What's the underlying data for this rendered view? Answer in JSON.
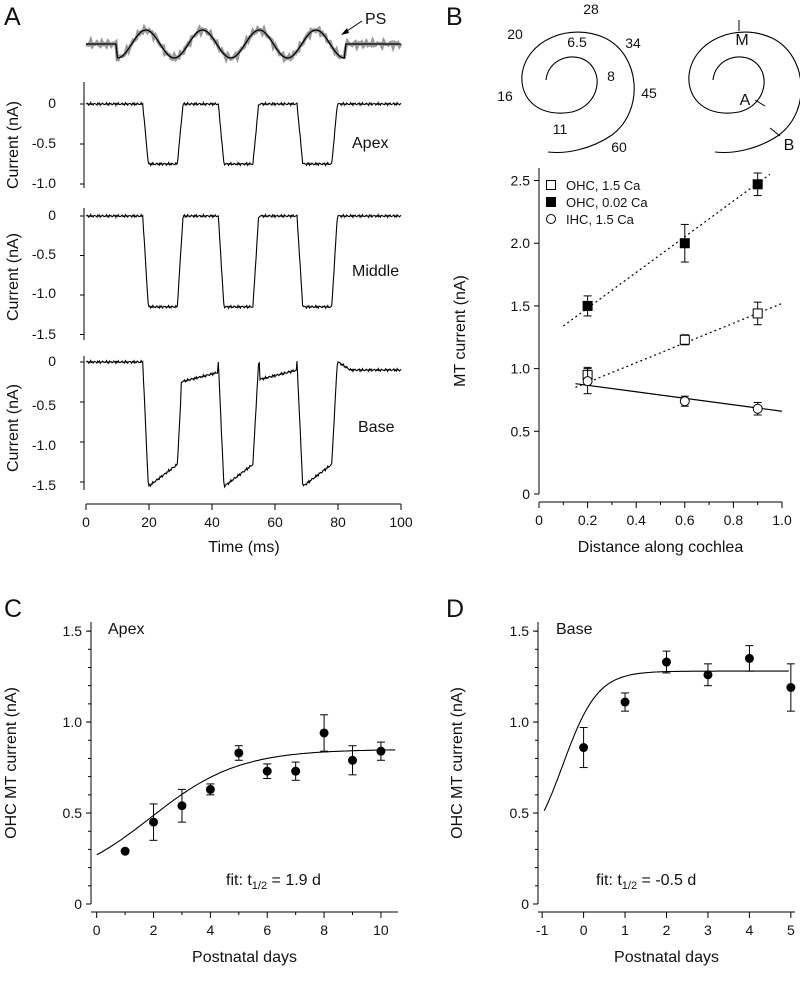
{
  "panels": {
    "A": {
      "letter": "A",
      "stimulus": {
        "label": "PS",
        "command_color": "#000000",
        "recorded_color": "#999999"
      },
      "traces": [
        {
          "name": "Apex",
          "ylabel": "Current (nA)",
          "yticks": [
            "0",
            "-0.5",
            "-1.0"
          ],
          "amplitude_nA": 0.75,
          "shape": "square"
        },
        {
          "name": "Middle",
          "ylabel": "Current (nA)",
          "yticks": [
            "0",
            "-0.5",
            "-1.0",
            "-1.5"
          ],
          "amplitude_nA": 1.15,
          "shape": "square"
        },
        {
          "name": "Base",
          "ylabel": "Current (nA)",
          "yticks": [
            "0",
            "-0.5",
            "-1.0",
            "-1.5"
          ],
          "amplitude_nA": 1.55,
          "shape": "adapting"
        }
      ],
      "xaxis": {
        "title": "Time (ms)",
        "ticks": [
          "0",
          "20",
          "40",
          "60",
          "80",
          "100"
        ]
      }
    },
    "B": {
      "letter": "B",
      "spiral_freq_labels": [
        "28",
        "20",
        "6.5",
        "34",
        "8",
        "45",
        "16",
        "11",
        "60"
      ],
      "spiral_pos_labels": [
        "M",
        "A",
        "B"
      ]
    },
    "C": {
      "letter": "C",
      "annotation": "Apex",
      "fit_label": "fit: t",
      "fit_sub": "1/2",
      "fit_value": " = 1.9 d"
    },
    "D": {
      "letter": "D",
      "annotation": "Base",
      "fit_label": "fit: t",
      "fit_sub": "1/2",
      "fit_value": " = -0.5 d"
    }
  },
  "chart_data": [
    {
      "id": "B-main",
      "type": "scatter",
      "xlabel": "Distance along cochlea",
      "ylabel": "MT current (nA)",
      "xlim": [
        0,
        1.0
      ],
      "ylim": [
        0,
        2.6
      ],
      "xticks": [
        "0",
        "0.2",
        "0.4",
        "0.6",
        "0.8",
        "1.0"
      ],
      "yticks": [
        "0",
        "0.5",
        "1.0",
        "1.5",
        "2.0",
        "2.5"
      ],
      "legend_position": "top-left",
      "series": [
        {
          "name": "OHC, 1.5 Ca",
          "marker": "open-square",
          "x": [
            0.2,
            0.6,
            0.9
          ],
          "y": [
            0.95,
            1.23,
            1.44
          ],
          "err": [
            0.06,
            0.04,
            0.09
          ],
          "fit": {
            "style": "dotted",
            "x": [
              0.15,
              1.0
            ],
            "y": [
              0.85,
              1.52
            ]
          }
        },
        {
          "name": "OHC, 0.02 Ca",
          "marker": "filled-square",
          "x": [
            0.2,
            0.6,
            0.9
          ],
          "y": [
            1.5,
            2.0,
            2.47
          ],
          "err": [
            0.08,
            0.15,
            0.09
          ],
          "fit": {
            "style": "dotted",
            "x": [
              0.1,
              0.95
            ],
            "y": [
              1.34,
              2.55
            ]
          }
        },
        {
          "name": "IHC, 1.5 Ca",
          "marker": "open-circle",
          "x": [
            0.2,
            0.6,
            0.9
          ],
          "y": [
            0.9,
            0.74,
            0.68
          ],
          "err": [
            0.1,
            0.04,
            0.05
          ],
          "fit": {
            "style": "solid",
            "x": [
              0.15,
              1.0
            ],
            "y": [
              0.88,
              0.66
            ]
          }
        }
      ]
    },
    {
      "id": "C",
      "type": "scatter",
      "xlabel": "Postnatal days",
      "ylabel": "OHC MT current (nA)",
      "xlim": [
        -0.2,
        10.6
      ],
      "ylim": [
        0,
        1.55
      ],
      "xticks": [
        "0",
        "2",
        "4",
        "6",
        "8",
        "10"
      ],
      "yticks": [
        "0",
        "0.5",
        "1.0",
        "1.5"
      ],
      "series": [
        {
          "x": [
            1,
            2,
            3,
            4,
            5,
            6,
            7,
            8,
            9,
            10
          ],
          "y": [
            0.29,
            0.45,
            0.54,
            0.63,
            0.83,
            0.73,
            0.73,
            0.94,
            0.79,
            0.84
          ],
          "err": [
            0.01,
            0.1,
            0.09,
            0.03,
            0.04,
            0.04,
            0.05,
            0.1,
            0.08,
            0.05
          ]
        }
      ],
      "fit": {
        "type": "boltzmann",
        "min": 0.1,
        "max": 0.85,
        "t_half": 1.9,
        "slope": 1.55,
        "x_range": [
          0,
          10.5
        ]
      }
    },
    {
      "id": "D",
      "type": "scatter",
      "xlabel": "Postnatal days",
      "ylabel": "OHC MT current (nA)",
      "xlim": [
        -1.1,
        5.1
      ],
      "ylim": [
        0,
        1.55
      ],
      "xticks": [
        "-1",
        "0",
        "1",
        "2",
        "3",
        "4",
        "5"
      ],
      "yticks": [
        "0",
        "0.5",
        "1.0",
        "1.5"
      ],
      "series": [
        {
          "x": [
            0,
            1,
            2,
            3,
            4,
            5
          ],
          "y": [
            0.86,
            1.11,
            1.33,
            1.26,
            1.35,
            1.19
          ],
          "err": [
            0.11,
            0.05,
            0.06,
            0.06,
            0.07,
            0.13
          ]
        }
      ],
      "fit": {
        "type": "boltzmann",
        "min": 0.25,
        "max": 1.28,
        "t_half": -0.5,
        "slope": 0.42,
        "x_range": [
          -0.95,
          4.95
        ]
      }
    }
  ]
}
